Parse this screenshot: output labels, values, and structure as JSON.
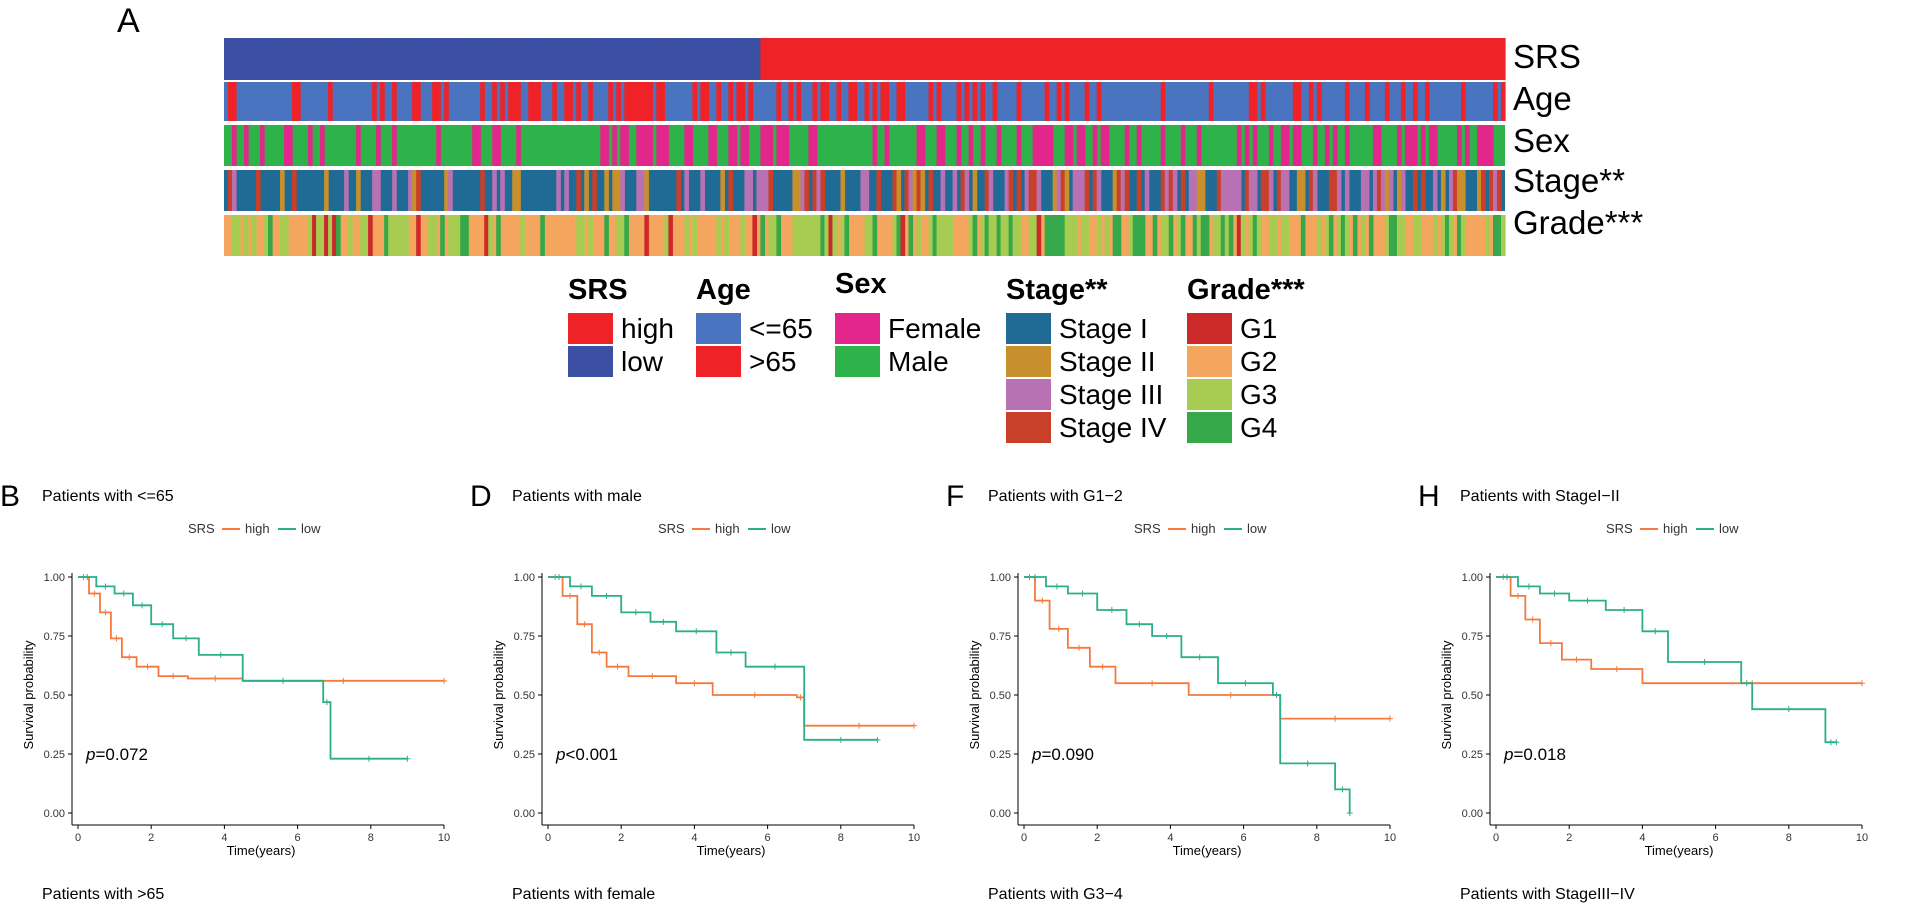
{
  "panel_a": {
    "letter": "A",
    "tracks": [
      "SRS",
      "Age",
      "Sex",
      "Stage**",
      "Grade***"
    ],
    "legends": [
      {
        "title": "SRS",
        "items": [
          {
            "label": "high",
            "color": "#ee2227"
          },
          {
            "label": "low",
            "color": "#3b4fa3"
          }
        ]
      },
      {
        "title": "Age",
        "items": [
          {
            "label": "<=65",
            "color": "#4a74c0"
          },
          {
            "label": ">65",
            "color": "#ee2227"
          }
        ]
      },
      {
        "title": "Sex",
        "items": [
          {
            "label": "Female",
            "color": "#e2268b"
          },
          {
            "label": "Male",
            "color": "#2db34a"
          }
        ]
      },
      {
        "title": "Stage**",
        "items": [
          {
            "label": "Stage I",
            "color": "#1f6b96"
          },
          {
            "label": "Stage II",
            "color": "#c8902c"
          },
          {
            "label": "Stage III",
            "color": "#b872b4"
          },
          {
            "label": "Stage IV",
            "color": "#c8402a"
          }
        ]
      },
      {
        "title": "Grade***",
        "items": [
          {
            "label": "G1",
            "color": "#cc2a2a"
          },
          {
            "label": "G2",
            "color": "#f4a55e"
          },
          {
            "label": "G3",
            "color": "#a8cc52"
          },
          {
            "label": "G4",
            "color": "#35a84a"
          }
        ]
      }
    ]
  },
  "km_common": {
    "legend_title": "SRS",
    "legend_high": "high",
    "legend_low": "low",
    "color_high": "#f47a3f",
    "color_low": "#2aaf8a",
    "xlabel": "Time(years)",
    "ylabel": "Survival probability",
    "x_ticks": [
      "0",
      "2",
      "4",
      "6",
      "8",
      "10"
    ],
    "y_ticks": [
      "0.00",
      "0.25",
      "0.50",
      "0.75",
      "1.00"
    ]
  },
  "km_panels": [
    {
      "letter": "B",
      "title": "Patients with <=65",
      "p_label": "p",
      "p_value": "=0.072",
      "bottom": "Patients with >65"
    },
    {
      "letter": "D",
      "title": "Patients with male",
      "p_label": "p",
      "p_value": "<0.001",
      "bottom": "Patients with female"
    },
    {
      "letter": "F",
      "title": "Patients with G1−2",
      "p_label": "p",
      "p_value": "=0.090",
      "bottom": "Patients with G3−4"
    },
    {
      "letter": "H",
      "title": "Patients with StageI−II",
      "p_label": "p",
      "p_value": "=0.018",
      "bottom": "Patients with StageIII−IV"
    }
  ],
  "chart_data": [
    {
      "type": "line",
      "title": "Patients with <=65",
      "xlabel": "Time(years)",
      "ylabel": "Survival probability",
      "xlim": [
        0,
        10
      ],
      "ylim": [
        0,
        1
      ],
      "series": [
        {
          "name": "high",
          "x": [
            0,
            0.3,
            0.6,
            0.9,
            1.2,
            1.6,
            2.2,
            3.0,
            4.5,
            10.0
          ],
          "y": [
            1.0,
            0.93,
            0.85,
            0.74,
            0.66,
            0.62,
            0.58,
            0.57,
            0.56,
            0.56
          ]
        },
        {
          "name": "low",
          "x": [
            0,
            0.5,
            1.0,
            1.5,
            2.0,
            2.6,
            3.3,
            4.5,
            6.7,
            6.9,
            9.0
          ],
          "y": [
            1.0,
            0.96,
            0.93,
            0.88,
            0.8,
            0.74,
            0.67,
            0.56,
            0.47,
            0.23,
            0.23
          ]
        }
      ]
    },
    {
      "type": "line",
      "title": "Patients with male",
      "xlabel": "Time(years)",
      "ylabel": "Survival probability",
      "xlim": [
        0,
        10
      ],
      "ylim": [
        0,
        1
      ],
      "series": [
        {
          "name": "high",
          "x": [
            0,
            0.4,
            0.8,
            1.2,
            1.6,
            2.2,
            3.5,
            4.5,
            6.8,
            7.0,
            10.0
          ],
          "y": [
            1.0,
            0.92,
            0.8,
            0.68,
            0.62,
            0.58,
            0.55,
            0.5,
            0.49,
            0.37,
            0.37
          ]
        },
        {
          "name": "low",
          "x": [
            0,
            0.6,
            1.2,
            2.0,
            2.8,
            3.5,
            4.6,
            5.4,
            7.0,
            9.0
          ],
          "y": [
            1.0,
            0.96,
            0.92,
            0.85,
            0.81,
            0.77,
            0.68,
            0.62,
            0.31,
            0.31
          ]
        }
      ]
    },
    {
      "type": "line",
      "title": "Patients with G1−2",
      "xlabel": "Time(years)",
      "ylabel": "Survival probability",
      "xlim": [
        0,
        10
      ],
      "ylim": [
        0,
        1
      ],
      "series": [
        {
          "name": "high",
          "x": [
            0,
            0.3,
            0.7,
            1.2,
            1.8,
            2.5,
            4.5,
            6.8,
            7.0,
            10.0
          ],
          "y": [
            1.0,
            0.9,
            0.78,
            0.7,
            0.62,
            0.55,
            0.5,
            0.5,
            0.4,
            0.4
          ]
        },
        {
          "name": "low",
          "x": [
            0,
            0.6,
            1.2,
            2.0,
            2.8,
            3.5,
            4.3,
            5.3,
            6.8,
            7.0,
            8.5,
            8.9
          ],
          "y": [
            1.0,
            0.96,
            0.93,
            0.86,
            0.8,
            0.75,
            0.66,
            0.55,
            0.5,
            0.21,
            0.1,
            0.0
          ]
        }
      ]
    },
    {
      "type": "line",
      "title": "Patients with StageI−II",
      "xlabel": "Time(years)",
      "ylabel": "Survival probability",
      "xlim": [
        0,
        10
      ],
      "ylim": [
        0,
        1
      ],
      "series": [
        {
          "name": "high",
          "x": [
            0,
            0.4,
            0.8,
            1.2,
            1.8,
            2.6,
            4.0,
            10.0
          ],
          "y": [
            1.0,
            0.92,
            0.82,
            0.72,
            0.65,
            0.61,
            0.55,
            0.55
          ]
        },
        {
          "name": "low",
          "x": [
            0,
            0.6,
            1.2,
            2.0,
            3.0,
            4.0,
            4.7,
            6.7,
            7.0,
            9.0,
            9.3
          ],
          "y": [
            1.0,
            0.96,
            0.93,
            0.9,
            0.86,
            0.77,
            0.64,
            0.55,
            0.44,
            0.3,
            0.3
          ]
        }
      ]
    }
  ]
}
